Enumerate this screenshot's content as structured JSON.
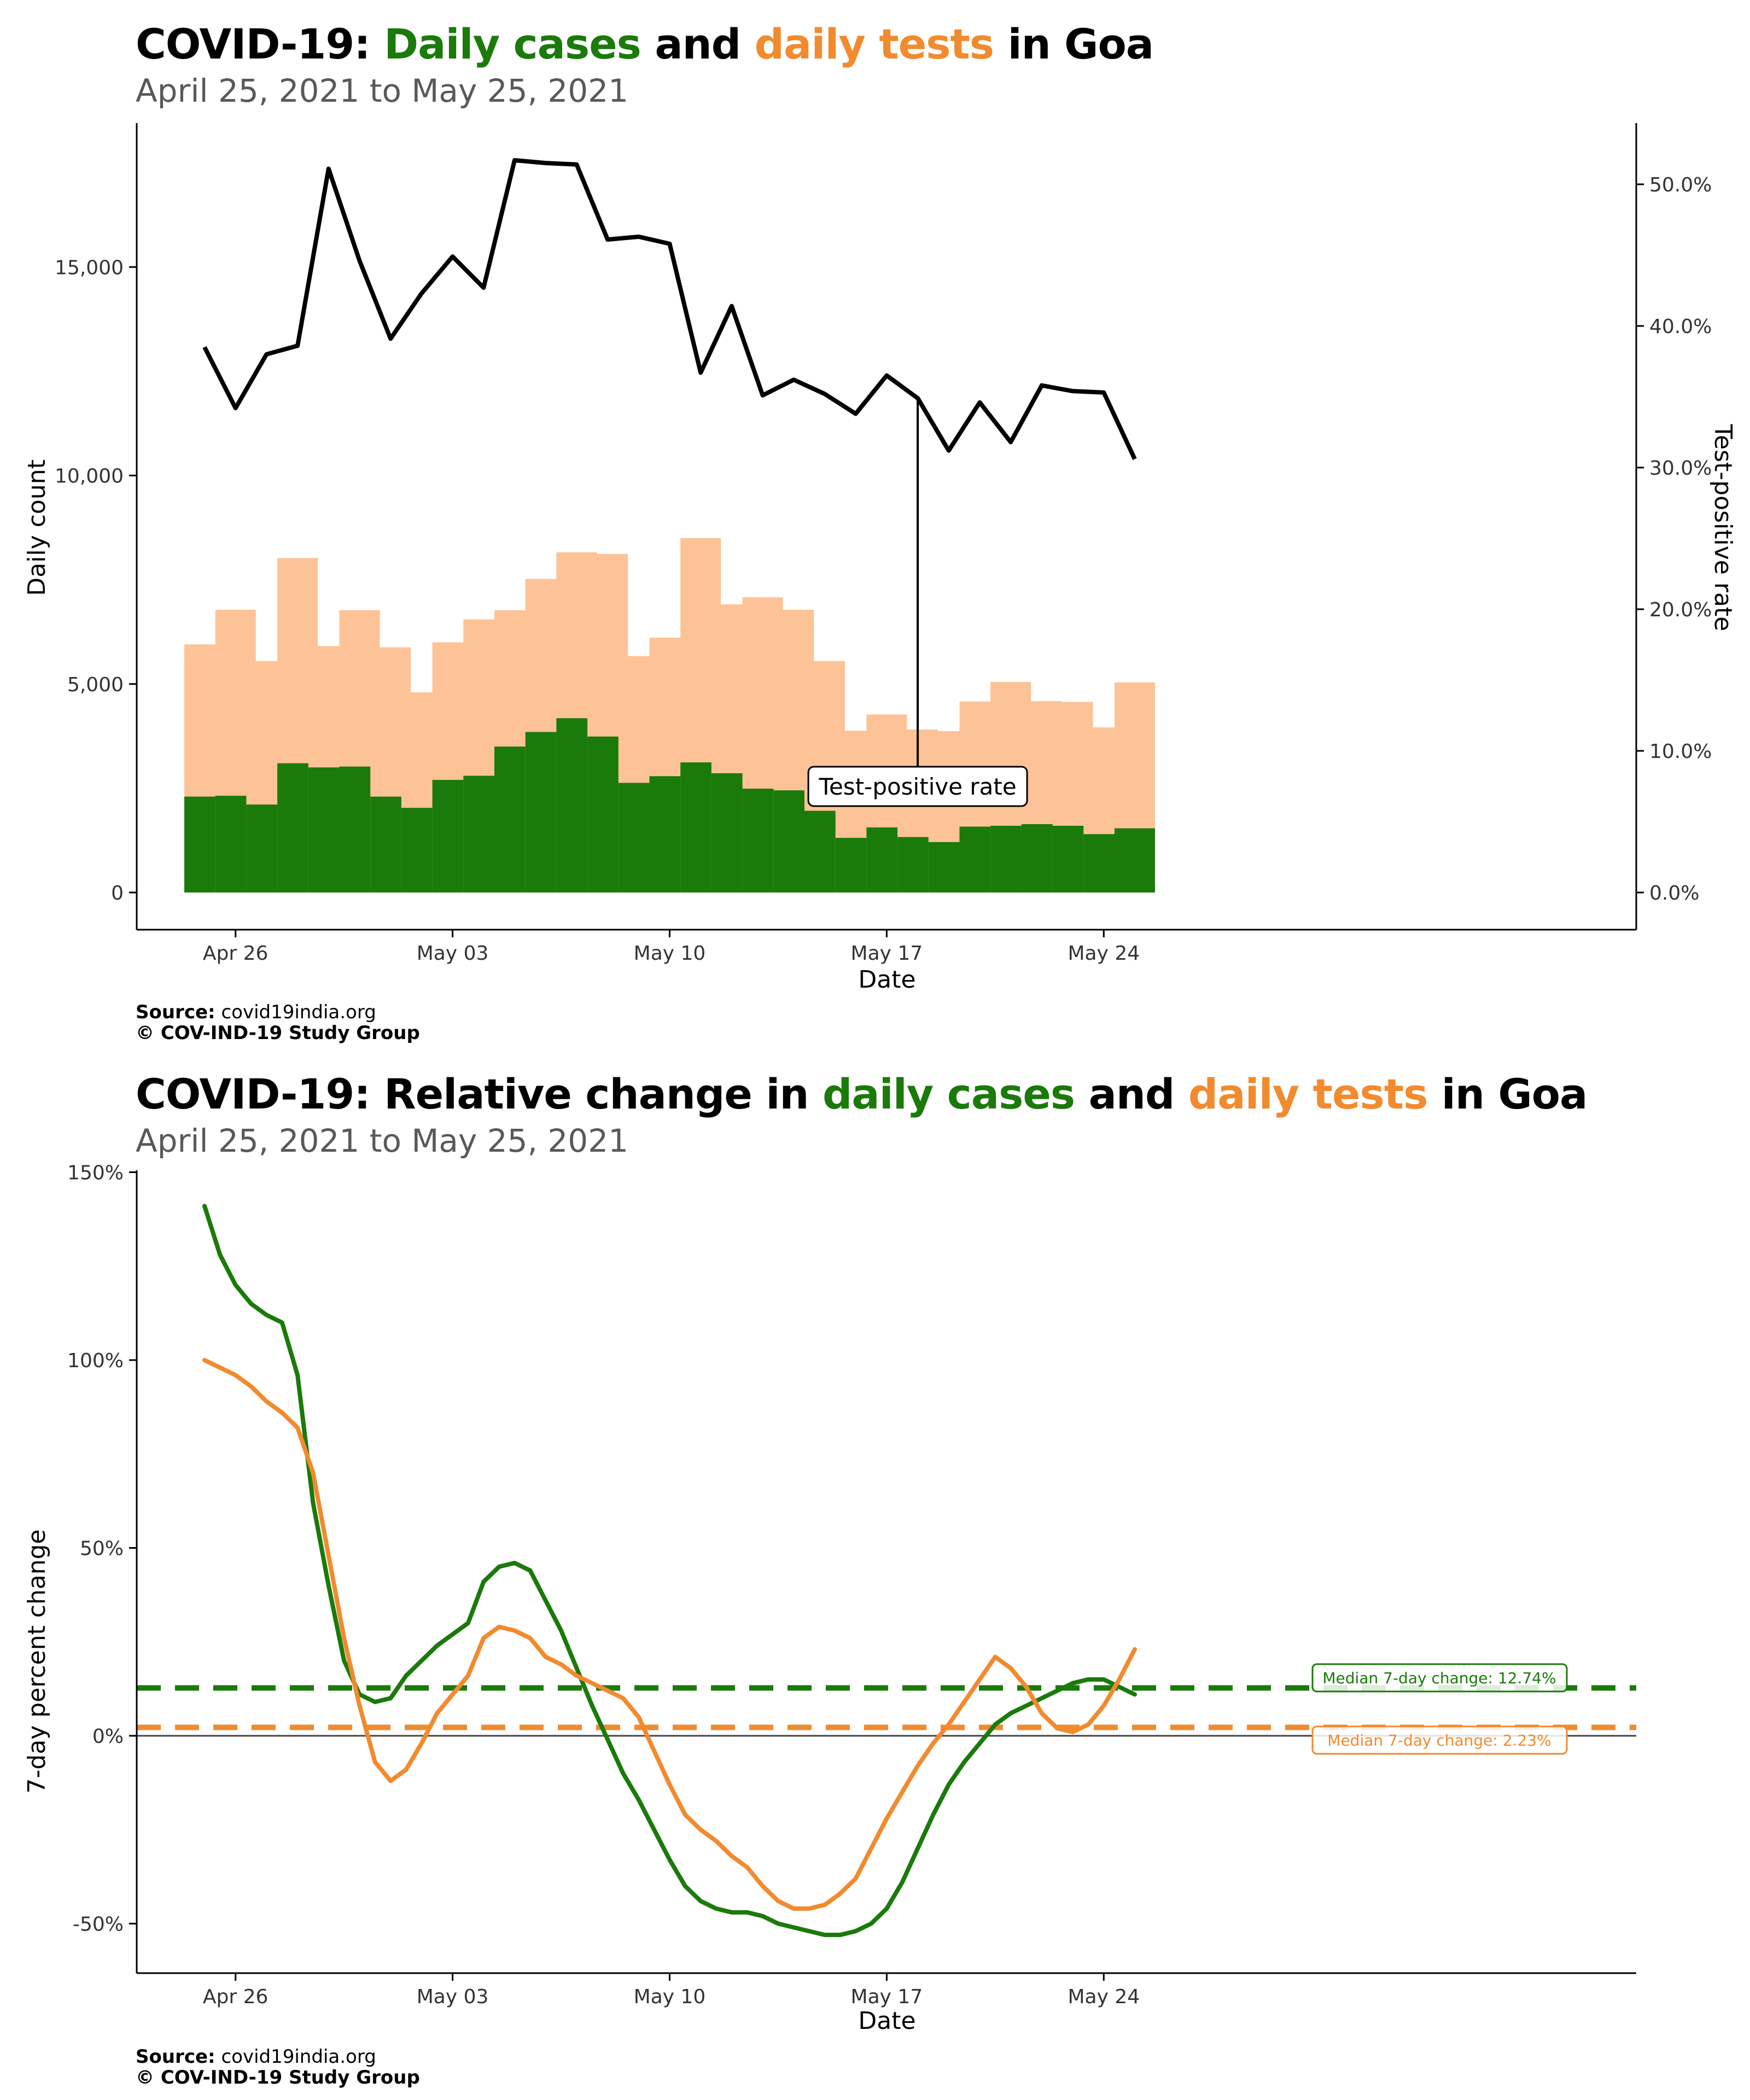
{
  "panel1": {
    "title_prefix": "COVID-19: ",
    "title_cases": "Daily cases",
    "title_and": " and ",
    "title_tests": "daily tests",
    "title_suffix": " in Goa",
    "subtitle": "April 25, 2021 to May 25, 2021",
    "source_label": "Source:",
    "source_value": "covid19india.org",
    "copyright": "© COV-IND-19 Study Group"
  },
  "panel2": {
    "title_prefix": "COVID-19: Relative change in ",
    "title_cases": "daily cases",
    "title_and": " and ",
    "title_tests": "daily tests",
    "title_suffix": " in Goa",
    "subtitle": "April 25, 2021 to May 25, 2021",
    "source_label": "Source:",
    "source_value": "covid19india.org",
    "copyright": "© COV-IND-19 Study Group"
  },
  "colors": {
    "cases": "#1a7a0a",
    "tests": "#fdc396",
    "tests_line": "#f28a2e",
    "rate": "#000000"
  },
  "chart_data": [
    {
      "type": "bar",
      "title": "COVID-19: Daily cases and daily tests in Goa",
      "subtitle": "April 25, 2021 to May 25, 2021",
      "xlabel": "Date",
      "ylabel": "Daily count",
      "y2label": "Test-positive rate",
      "x_ticks": [
        "Apr 26",
        "May 03",
        "May 10",
        "May 17",
        "May 24"
      ],
      "y_ticks": [
        "0",
        "5,000",
        "10,000",
        "15,000"
      ],
      "y2_ticks": [
        "0.0%",
        "10.0%",
        "20.0%",
        "30.0%",
        "40.0%",
        "50.0%"
      ],
      "ylim": [
        0,
        17500
      ],
      "y2lim": [
        0,
        50
      ],
      "dates": [
        "2021-04-25",
        "2021-04-26",
        "2021-04-27",
        "2021-04-28",
        "2021-04-29",
        "2021-04-30",
        "2021-05-01",
        "2021-05-02",
        "2021-05-03",
        "2021-05-04",
        "2021-05-05",
        "2021-05-06",
        "2021-05-07",
        "2021-05-08",
        "2021-05-09",
        "2021-05-10",
        "2021-05-11",
        "2021-05-12",
        "2021-05-13",
        "2021-05-14",
        "2021-05-15",
        "2021-05-16",
        "2021-05-17",
        "2021-05-18",
        "2021-05-19",
        "2021-05-20",
        "2021-05-21",
        "2021-05-22",
        "2021-05-23",
        "2021-05-24",
        "2021-05-25"
      ],
      "tests": [
        5950,
        6780,
        5550,
        8020,
        5910,
        6770,
        5880,
        4800,
        6000,
        6550,
        6770,
        7520,
        8160,
        8120,
        5670,
        6110,
        8500,
        6910,
        7080,
        6780,
        5550,
        3880,
        4270,
        3910,
        3870,
        4580,
        5050,
        4590,
        4570,
        3960,
        5040
      ],
      "cases": [
        2300,
        2320,
        2110,
        3100,
        3000,
        3020,
        2300,
        2030,
        2700,
        2800,
        3500,
        3850,
        4180,
        3740,
        2630,
        2790,
        3120,
        2860,
        2490,
        2450,
        1960,
        1310,
        1560,
        1330,
        1210,
        1580,
        1600,
        1640,
        1600,
        1400,
        1540
      ],
      "positivity_rate": [
        38.5,
        34.2,
        38.0,
        38.6,
        51.1,
        44.6,
        39.1,
        42.3,
        44.9,
        42.7,
        51.7,
        51.5,
        51.4,
        46.1,
        46.3,
        45.8,
        36.7,
        41.4,
        35.1,
        36.2,
        35.2,
        33.8,
        36.5,
        34.9,
        31.2,
        34.6,
        31.8,
        35.8,
        35.4,
        35.3,
        30.6
      ],
      "annotation": "Test-positive rate"
    },
    {
      "type": "line",
      "title": "COVID-19: Relative change in daily cases and daily tests in Goa",
      "subtitle": "April 25, 2021 to May 25, 2021",
      "xlabel": "Date",
      "ylabel": "7-day percent change",
      "x_ticks": [
        "Apr 26",
        "May 03",
        "May 10",
        "May 17",
        "May 24"
      ],
      "y_ticks": [
        "-50%",
        "0%",
        "50%",
        "100%",
        "150%"
      ],
      "ylim": [
        -60,
        150
      ],
      "x_days": [
        0,
        0.5,
        1,
        1.5,
        2,
        2.5,
        3,
        3.5,
        4,
        4.5,
        5,
        5.5,
        6,
        6.5,
        7,
        7.5,
        8,
        8.5,
        9,
        9.5,
        10,
        10.5,
        11,
        11.5,
        12,
        12.5,
        13,
        13.5,
        14,
        14.5,
        15,
        15.5,
        16,
        16.5,
        17,
        17.5,
        18,
        18.5,
        19,
        19.5,
        20,
        20.5,
        21,
        21.5,
        22,
        22.5,
        23,
        23.5,
        24,
        24.5,
        25,
        25.5,
        26,
        26.5,
        27,
        27.5,
        28,
        28.5,
        29,
        29.5,
        30
      ],
      "series": [
        {
          "name": "daily cases",
          "values": [
            141,
            128,
            120,
            115,
            112,
            110,
            96,
            62,
            40,
            20,
            11,
            9,
            10,
            16,
            20,
            24,
            27,
            30,
            41,
            45,
            46,
            44,
            36,
            28,
            18,
            8,
            -1,
            -10,
            -17,
            -25,
            -33,
            -40,
            -44,
            -46,
            -47,
            -47,
            -48,
            -50,
            -51,
            -52,
            -53,
            -53,
            -52,
            -50,
            -46,
            -39,
            -30,
            -21,
            -13,
            -7,
            -2,
            3,
            6,
            8,
            10,
            12,
            14,
            15,
            15,
            13,
            11
          ]
        },
        {
          "name": "daily tests",
          "values": [
            100,
            98,
            96,
            93,
            89,
            86,
            82,
            70,
            48,
            26,
            8,
            -7,
            -12,
            -9,
            -2,
            6,
            11,
            16,
            26,
            29,
            28,
            26,
            21,
            19,
            16,
            14,
            12,
            10,
            5,
            -4,
            -13,
            -21,
            -25,
            -28,
            -32,
            -35,
            -40,
            -44,
            -46,
            -46,
            -45,
            -42,
            -38,
            -30,
            -22,
            -15,
            -8,
            -2,
            3,
            9,
            15,
            21,
            18,
            13,
            6,
            2,
            1,
            3,
            8,
            15,
            23
          ]
        }
      ],
      "medians": [
        {
          "name": "Median 7-day change: 12.74%",
          "value": 12.74
        },
        {
          "name": "Median 7-day change: 2.23%",
          "value": 2.23
        }
      ]
    }
  ]
}
